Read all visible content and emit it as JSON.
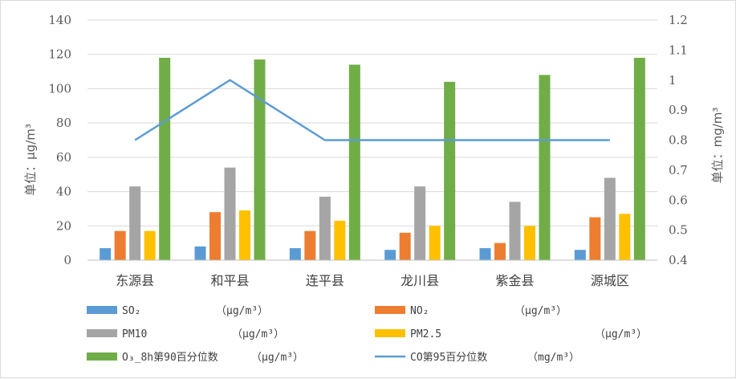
{
  "chart_data": {
    "type": "bar",
    "categories": [
      "东源县",
      "和平县",
      "连平县",
      "龙川县",
      "紫金县",
      "源城区"
    ],
    "series": [
      {
        "name": "SO₂",
        "unit": "（μg/m³）",
        "type": "bar",
        "color": "#5b9bd5",
        "values": [
          7,
          8,
          7,
          6,
          7,
          6
        ]
      },
      {
        "name": "NO₂",
        "unit": "（μg/m³）",
        "type": "bar",
        "color": "#ed7d31",
        "values": [
          17,
          28,
          17,
          16,
          10,
          25
        ]
      },
      {
        "name": "PM10",
        "unit": "（μg/m³）",
        "type": "bar",
        "color": "#a5a5a5",
        "values": [
          43,
          54,
          37,
          43,
          34,
          48
        ]
      },
      {
        "name": "PM2.5",
        "unit": "（μg/m³）",
        "type": "bar",
        "color": "#ffc000",
        "values": [
          17,
          29,
          23,
          20,
          20,
          27
        ]
      },
      {
        "name": "O₃_8h第90百分位数",
        "unit": "（μg/m³）",
        "type": "bar",
        "color": "#70ad47",
        "values": [
          118,
          117,
          114,
          104,
          108,
          118
        ]
      },
      {
        "name": "CO第95百分位数",
        "unit": "（mg/m³）",
        "type": "line",
        "axis": "right",
        "color": "#5b9bd5",
        "values": [
          0.8,
          1.0,
          0.8,
          0.8,
          0.8,
          0.8
        ]
      }
    ],
    "y_left": {
      "label": "单位：μg/m³",
      "ylim": [
        0,
        140
      ],
      "ticks": [
        "0",
        "20",
        "40",
        "60",
        "80",
        "100",
        "120",
        "140"
      ]
    },
    "y_right": {
      "label": "单位：mg/m³",
      "ylim": [
        0.4,
        1.2
      ],
      "ticks": [
        "0.4",
        "0.5",
        "0.6",
        "0.7",
        "0.8",
        "0.9",
        "1",
        "1.1",
        "1.2"
      ]
    },
    "grid": "horizontal",
    "legend_position": "bottom"
  }
}
